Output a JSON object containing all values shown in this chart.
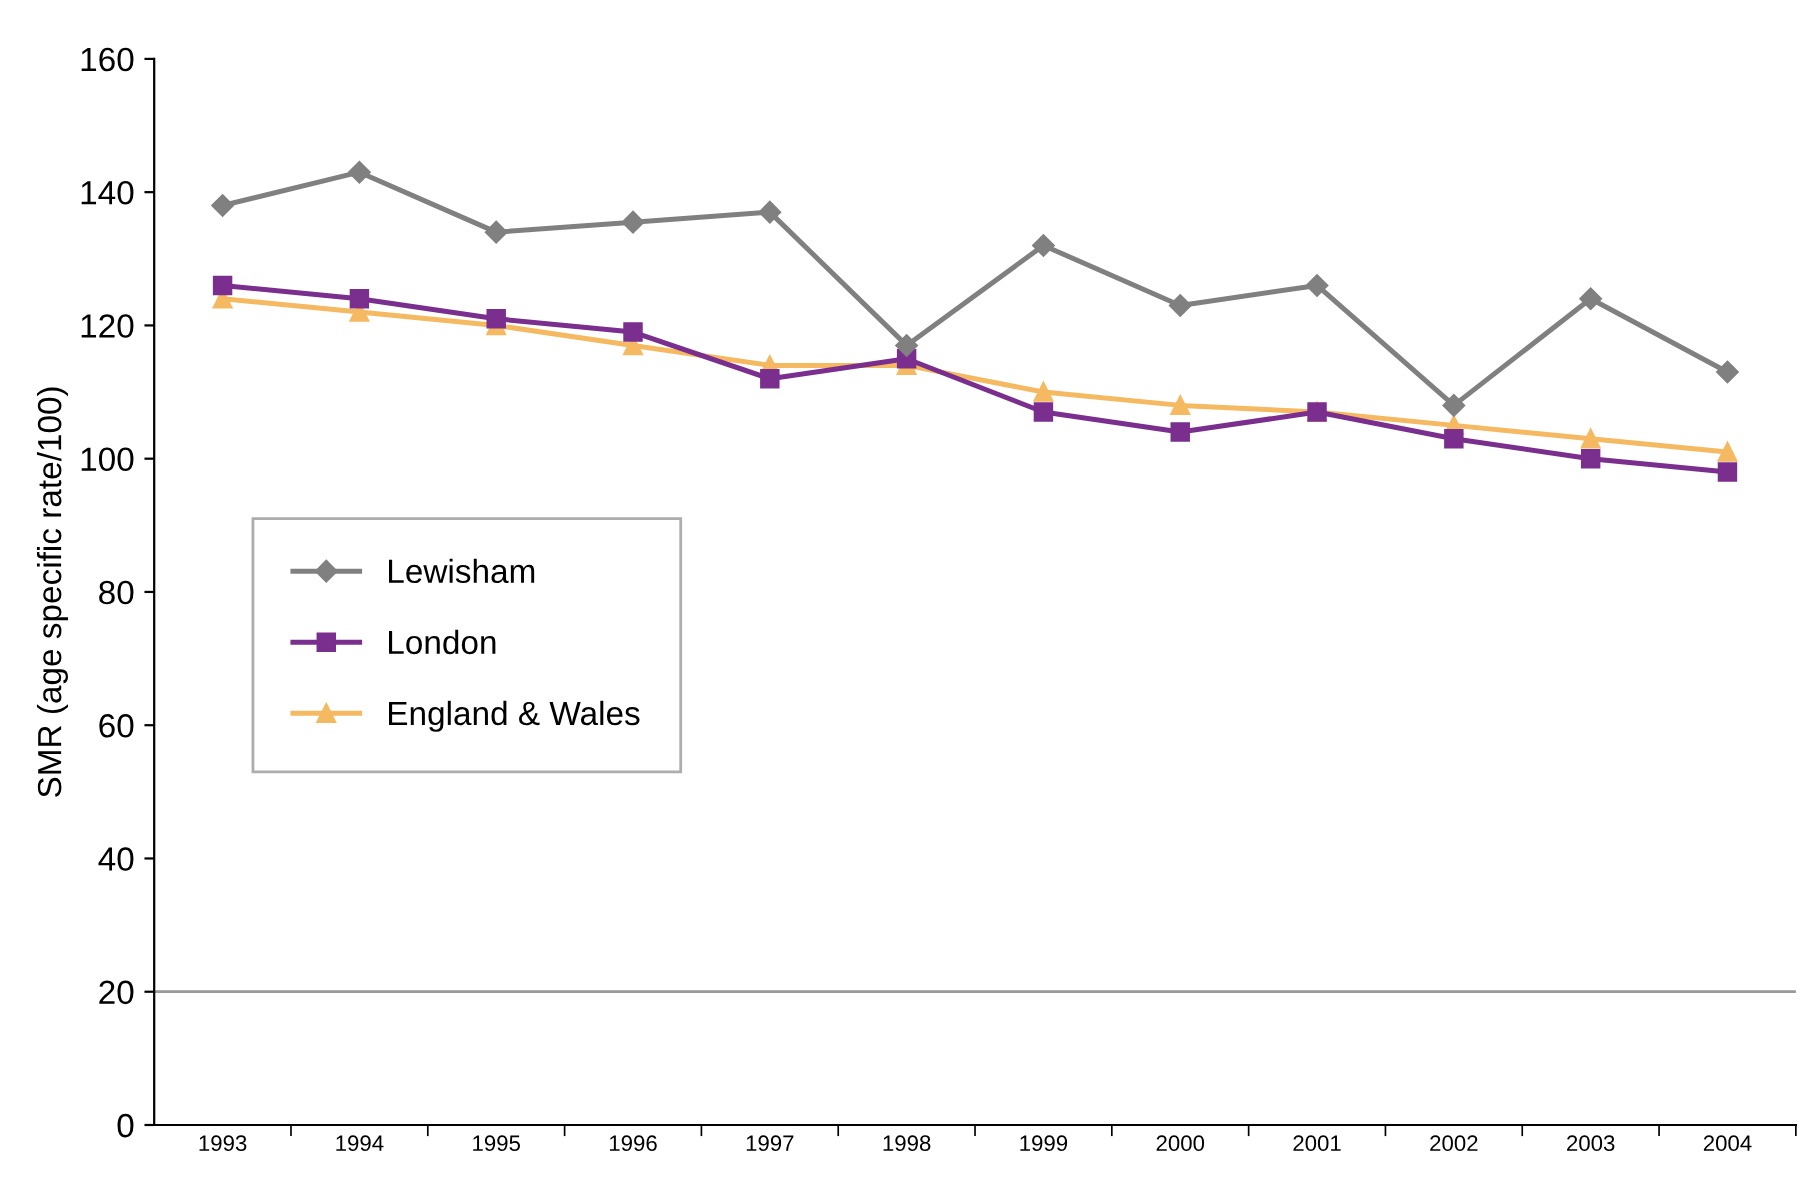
{
  "chart_data": {
    "type": "line",
    "ylabel": "SMR (age specific rate/100)",
    "categories": [
      "1993",
      "1994",
      "1995",
      "1996",
      "1997",
      "1998",
      "1999",
      "2000",
      "2001",
      "2002",
      "2003",
      "2004"
    ],
    "series": [
      {
        "name": "Lewisham",
        "color": "#808080",
        "marker": "diamond",
        "values": [
          138,
          143,
          134,
          135.5,
          137,
          117,
          132,
          123,
          126,
          108,
          124,
          113
        ]
      },
      {
        "name": "London",
        "color": "#7a2e8e",
        "marker": "square",
        "values": [
          126,
          124,
          121,
          119,
          112,
          115,
          107,
          104,
          107,
          103,
          100,
          98
        ]
      },
      {
        "name": "England & Wales",
        "color": "#f5b961",
        "marker": "triangle",
        "values": [
          124,
          122,
          120,
          117,
          114,
          114,
          110,
          108,
          107,
          105,
          103,
          101
        ]
      }
    ],
    "ylim": [
      0,
      160
    ],
    "yticks": [
      0,
      20,
      40,
      60,
      80,
      100,
      120,
      140,
      160
    ],
    "ref_lines": [
      {
        "axis": "y",
        "value": 20,
        "color": "#999999"
      }
    ],
    "grid": false,
    "legend": "center left"
  }
}
